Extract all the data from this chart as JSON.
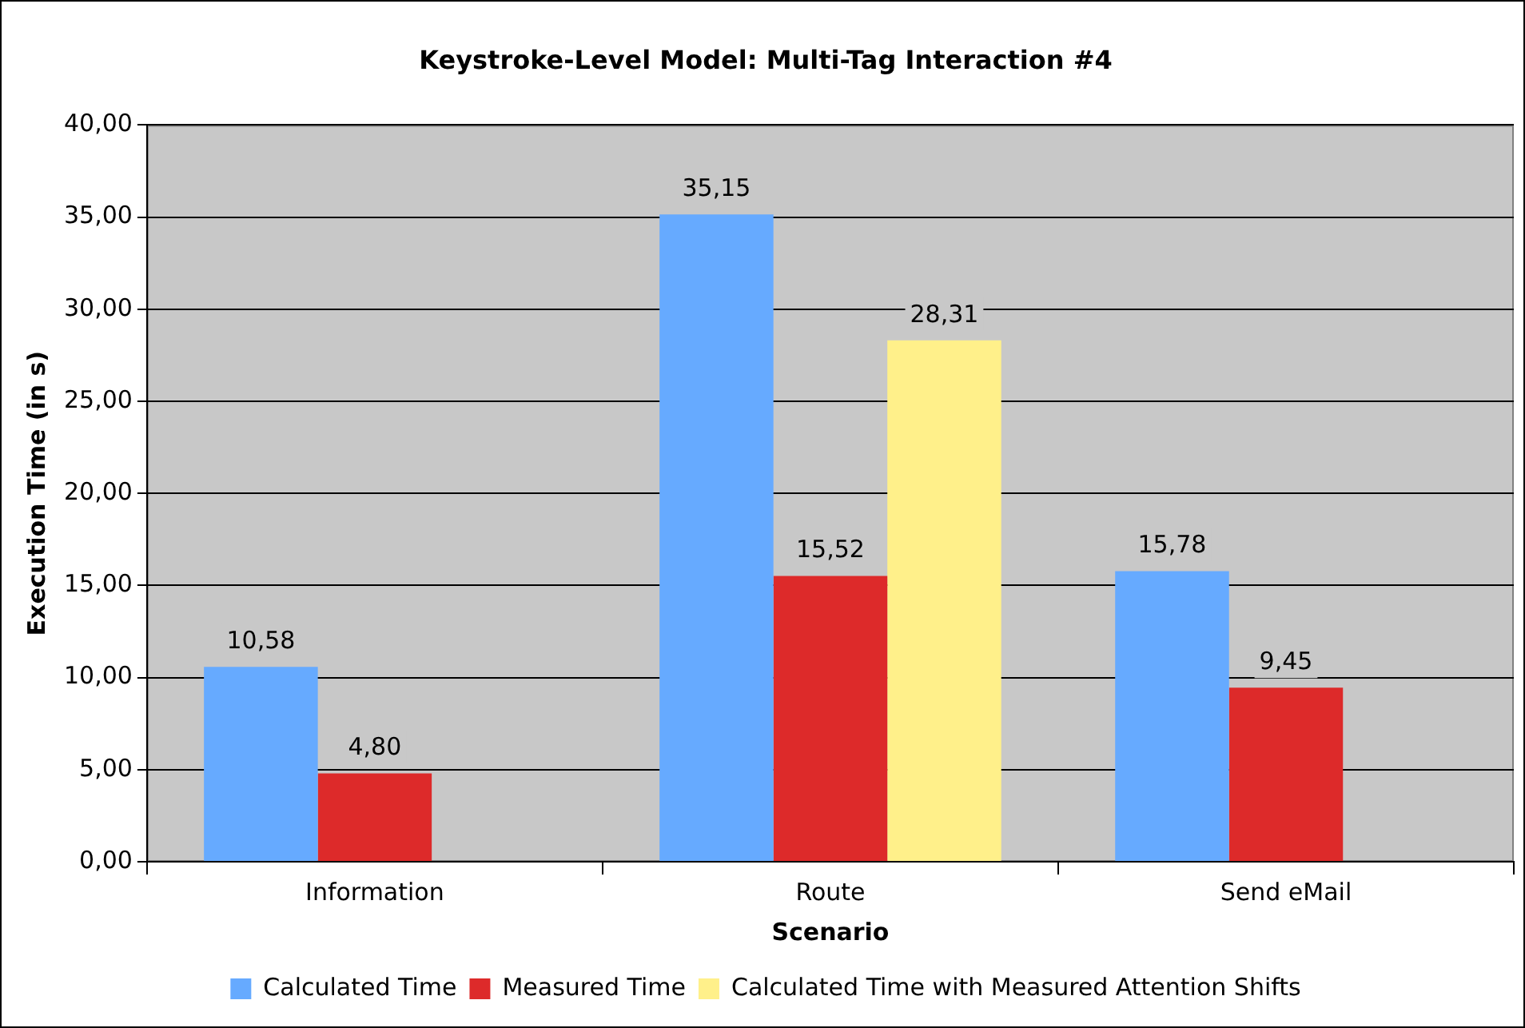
{
  "chart_data": {
    "type": "bar",
    "title": "Keystroke-Level Model: Multi-Tag Interaction #4",
    "xlabel": "Scenario",
    "ylabel": "Execution Time (in s)",
    "categories": [
      "Information",
      "Route",
      "Send eMail"
    ],
    "series": [
      {
        "name": "Calculated Time",
        "color": "#66aaff",
        "values": [
          10.58,
          35.15,
          15.78
        ],
        "value_labels": [
          "10,58",
          "35,15",
          "15,78"
        ]
      },
      {
        "name": "Measured Time",
        "color": "#dd2a2a",
        "values": [
          4.8,
          15.52,
          9.45
        ],
        "value_labels": [
          "4,80",
          "15,52",
          "9,45"
        ]
      },
      {
        "name": "Calculated Time with Measured Attention Shifts",
        "color": "#fff08a",
        "values": [
          null,
          28.31,
          null
        ],
        "value_labels": [
          null,
          "28,31",
          null
        ]
      }
    ],
    "ylim": [
      0,
      40
    ],
    "yticks": [
      {
        "value": 0,
        "label": "0,00"
      },
      {
        "value": 5,
        "label": "5,00"
      },
      {
        "value": 10,
        "label": "10,00"
      },
      {
        "value": 15,
        "label": "15,00"
      },
      {
        "value": 20,
        "label": "20,00"
      },
      {
        "value": 25,
        "label": "25,00"
      },
      {
        "value": 30,
        "label": "30,00"
      },
      {
        "value": 35,
        "label": "35,00"
      },
      {
        "value": 40,
        "label": "40,00"
      }
    ],
    "grid": "y",
    "legend": "bottom"
  }
}
